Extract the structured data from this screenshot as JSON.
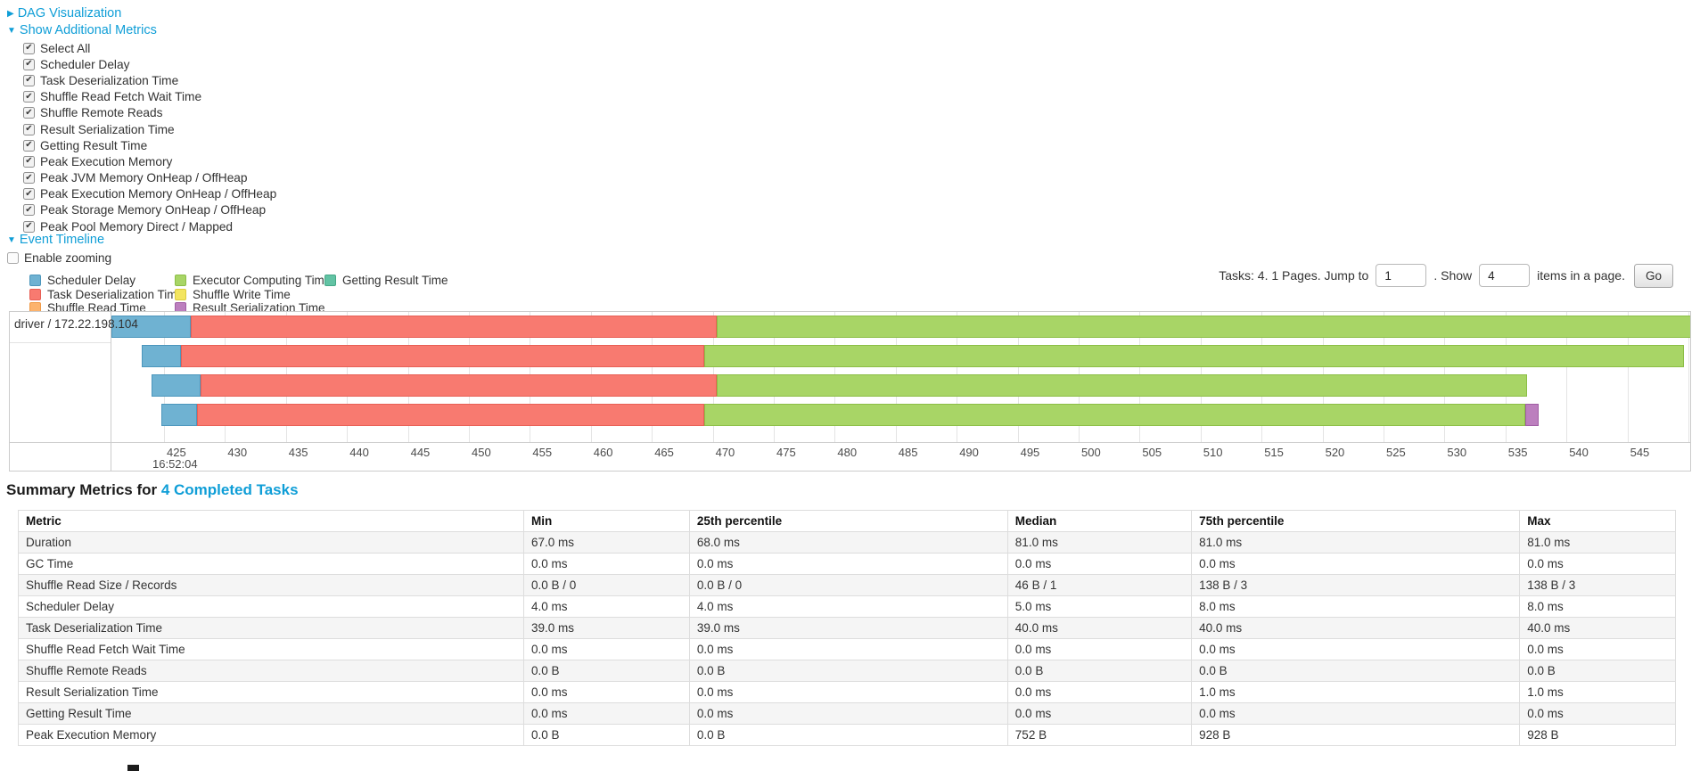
{
  "colors": {
    "link": "#0f9ed7",
    "scheduler_delay": {
      "fill": "#6FB2D2",
      "border": "#4C96BC"
    },
    "task_deserialization": {
      "fill": "#F87A70",
      "border": "#E85F55"
    },
    "shuffle_read": {
      "fill": "#FCB36D",
      "border": "#F09A47"
    },
    "executor_computing": {
      "fill": "#A8D566",
      "border": "#8CBE46"
    },
    "shuffle_write": {
      "fill": "#F3E55F",
      "border": "#DBCB3F"
    },
    "result_serialization": {
      "fill": "#BC7FBE",
      "border": "#A05DA4"
    },
    "getting_result": {
      "fill": "#62C3A4",
      "border": "#45A886"
    }
  },
  "sections": {
    "dag_label": "DAG Visualization",
    "metrics_label": "Show Additional Metrics",
    "timeline_label": "Event Timeline",
    "enable_zooming_label": "Enable zooming",
    "collapsed_arrow": "▶",
    "expanded_arrow": "▼",
    "check_glyph": "✔"
  },
  "metric_checkboxes": [
    "Select All",
    "Scheduler Delay",
    "Task Deserialization Time",
    "Shuffle Read Fetch Wait Time",
    "Shuffle Remote Reads",
    "Result Serialization Time",
    "Getting Result Time",
    "Peak Execution Memory",
    "Peak JVM Memory OnHeap / OffHeap",
    "Peak Execution Memory OnHeap / OffHeap",
    "Peak Storage Memory OnHeap / OffHeap",
    "Peak Pool Memory Direct / Mapped"
  ],
  "legend": {
    "columns": [
      [
        {
          "key": "scheduler_delay",
          "label": "Scheduler Delay"
        },
        {
          "key": "task_deserialization",
          "label": "Task Deserialization Time"
        },
        {
          "key": "shuffle_read",
          "label": "Shuffle Read Time"
        }
      ],
      [
        {
          "key": "executor_computing",
          "label": "Executor Computing Time"
        },
        {
          "key": "shuffle_write",
          "label": "Shuffle Write Time"
        },
        {
          "key": "result_serialization",
          "label": "Result Serialization Time"
        }
      ],
      [
        {
          "key": "getting_result",
          "label": "Getting Result Time"
        }
      ]
    ]
  },
  "pagination": {
    "summary_text": "Tasks: 4. 1 Pages. Jump to",
    "jump_value": "1",
    "show_label": ". Show",
    "show_value": "4",
    "suffix_text": "items in a page.",
    "go_label": "Go"
  },
  "timeline_chart": {
    "group_label": "driver / 172.22.198.104",
    "axis": {
      "start": 425,
      "end": 550,
      "step": 5,
      "base_time": "16:52:04"
    },
    "tasks": [
      {
        "segments": [
          {
            "k": "scheduler_delay",
            "t0": 420.69,
            "t1": 427.19
          },
          {
            "k": "task_deserialization",
            "t0": 427.19,
            "t1": 470.32
          },
          {
            "k": "executor_computing",
            "t0": 470.32,
            "t1": 550.4
          }
        ]
      },
      {
        "segments": [
          {
            "k": "scheduler_delay",
            "t0": 423.17,
            "t1": 426.39
          },
          {
            "k": "task_deserialization",
            "t0": 426.39,
            "t1": 469.3
          },
          {
            "k": "executor_computing",
            "t0": 469.3,
            "t1": 549.6
          }
        ]
      },
      {
        "segments": [
          {
            "k": "scheduler_delay",
            "t0": 423.98,
            "t1": 427.99
          },
          {
            "k": "task_deserialization",
            "t0": 427.99,
            "t1": 470.32
          },
          {
            "k": "executor_computing",
            "t0": 470.32,
            "t1": 536.77
          }
        ]
      },
      {
        "segments": [
          {
            "k": "scheduler_delay",
            "t0": 424.78,
            "t1": 427.7
          },
          {
            "k": "task_deserialization",
            "t0": 427.7,
            "t1": 469.3
          },
          {
            "k": "executor_computing",
            "t0": 469.3,
            "t1": 536.62
          },
          {
            "k": "result_serialization",
            "t0": 536.62,
            "t1": 537.72
          }
        ]
      }
    ]
  },
  "summary": {
    "heading_prefix": "Summary Metrics for ",
    "heading_link": "4 Completed Tasks",
    "headers": [
      "Metric",
      "Min",
      "25th percentile",
      "Median",
      "75th percentile",
      "Max"
    ],
    "rows": [
      [
        "Duration",
        "67.0 ms",
        "68.0 ms",
        "81.0 ms",
        "81.0 ms",
        "81.0 ms"
      ],
      [
        "GC Time",
        "0.0 ms",
        "0.0 ms",
        "0.0 ms",
        "0.0 ms",
        "0.0 ms"
      ],
      [
        "Shuffle Read Size / Records",
        "0.0 B / 0",
        "0.0 B / 0",
        "46 B / 1",
        "138 B / 3",
        "138 B / 3"
      ],
      [
        "Scheduler Delay",
        "4.0 ms",
        "4.0 ms",
        "5.0 ms",
        "8.0 ms",
        "8.0 ms"
      ],
      [
        "Task Deserialization Time",
        "39.0 ms",
        "39.0 ms",
        "40.0 ms",
        "40.0 ms",
        "40.0 ms"
      ],
      [
        "Shuffle Read Fetch Wait Time",
        "0.0 ms",
        "0.0 ms",
        "0.0 ms",
        "0.0 ms",
        "0.0 ms"
      ],
      [
        "Shuffle Remote Reads",
        "0.0 B",
        "0.0 B",
        "0.0 B",
        "0.0 B",
        "0.0 B"
      ],
      [
        "Result Serialization Time",
        "0.0 ms",
        "0.0 ms",
        "0.0 ms",
        "1.0 ms",
        "1.0 ms"
      ],
      [
        "Getting Result Time",
        "0.0 ms",
        "0.0 ms",
        "0.0 ms",
        "0.0 ms",
        "0.0 ms"
      ],
      [
        "Peak Execution Memory",
        "0.0 B",
        "0.0 B",
        "752 B",
        "928 B",
        "928 B"
      ]
    ]
  }
}
